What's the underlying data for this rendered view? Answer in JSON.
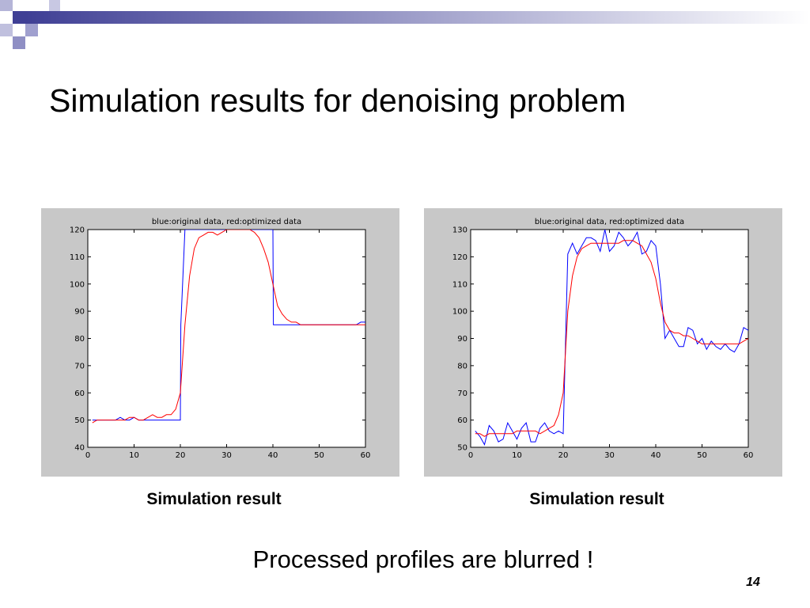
{
  "slide": {
    "title": "Simulation results for denoising problem",
    "note": "Processed profiles are blurred !",
    "number": "14"
  },
  "captions": [
    "Simulation result",
    "Simulation result"
  ],
  "colors": {
    "original": "#0000ff",
    "optimized": "#ff0000",
    "decor": "#3f3f95"
  },
  "chart_data": [
    {
      "type": "line",
      "title": "blue:original data, red:optimized data",
      "xlim": [
        0,
        60
      ],
      "ylim": [
        40,
        120
      ],
      "xticks": [
        0,
        10,
        20,
        30,
        40,
        50,
        60
      ],
      "yticks": [
        40,
        50,
        60,
        70,
        80,
        90,
        100,
        110,
        120
      ],
      "series": [
        {
          "color": "blue",
          "x": [
            1,
            2,
            3,
            4,
            5,
            6,
            7,
            8,
            9,
            10,
            11,
            12,
            13,
            14,
            15,
            16,
            17,
            18,
            19,
            20,
            20.1,
            21,
            22,
            23,
            24,
            25,
            26,
            27,
            28,
            29,
            30,
            31,
            32,
            33,
            34,
            35,
            36,
            37,
            38,
            39,
            40,
            40.1,
            41,
            42,
            43,
            44,
            45,
            46,
            47,
            48,
            49,
            50,
            51,
            52,
            53,
            54,
            55,
            56,
            57,
            58,
            59,
            60
          ],
          "y": [
            50,
            50,
            50,
            50,
            50,
            50,
            51,
            50,
            50,
            51,
            50,
            50,
            50,
            50,
            50,
            50,
            50,
            50,
            50,
            50,
            85,
            120,
            120,
            120,
            120,
            120,
            120,
            120,
            120,
            120,
            120,
            120,
            120,
            120,
            120,
            120,
            120,
            120,
            120,
            120,
            120,
            85,
            85,
            85,
            85,
            85,
            85,
            85,
            85,
            85,
            85,
            85,
            85,
            85,
            85,
            85,
            85,
            85,
            85,
            85,
            86,
            86
          ]
        },
        {
          "color": "red",
          "x": [
            1,
            2,
            3,
            4,
            5,
            6,
            7,
            8,
            9,
            10,
            11,
            12,
            13,
            14,
            15,
            16,
            17,
            18,
            19,
            20,
            21,
            22,
            23,
            24,
            25,
            26,
            27,
            28,
            29,
            30,
            31,
            32,
            33,
            34,
            35,
            36,
            37,
            38,
            39,
            40,
            41,
            42,
            43,
            44,
            45,
            46,
            47,
            48,
            49,
            50,
            51,
            52,
            53,
            54,
            55,
            56,
            57,
            58,
            59,
            60
          ],
          "y": [
            49,
            50,
            50,
            50,
            50,
            50,
            50,
            50,
            51,
            51,
            50,
            50,
            51,
            52,
            51,
            51,
            52,
            52,
            54,
            60,
            85,
            103,
            113,
            117,
            118,
            119,
            119,
            118,
            119,
            120,
            120,
            120,
            120,
            120,
            120,
            119,
            117,
            113,
            108,
            100,
            92,
            89,
            87,
            86,
            86,
            85,
            85,
            85,
            85,
            85,
            85,
            85,
            85,
            85,
            85,
            85,
            85,
            85,
            85,
            85
          ]
        }
      ]
    },
    {
      "type": "line",
      "title": "blue:original data, red:optimized data",
      "xlim": [
        0,
        60
      ],
      "ylim": [
        50,
        130
      ],
      "xticks": [
        0,
        10,
        20,
        30,
        40,
        50,
        60
      ],
      "yticks": [
        50,
        60,
        70,
        80,
        90,
        100,
        110,
        120,
        130
      ],
      "series": [
        {
          "color": "blue",
          "x": [
            1,
            2,
            3,
            4,
            5,
            6,
            7,
            8,
            9,
            10,
            11,
            12,
            13,
            14,
            15,
            16,
            17,
            18,
            19,
            20,
            21,
            22,
            23,
            24,
            25,
            26,
            27,
            28,
            29,
            30,
            31,
            32,
            33,
            34,
            35,
            36,
            37,
            38,
            39,
            40,
            41,
            42,
            43,
            44,
            45,
            46,
            47,
            48,
            49,
            50,
            51,
            52,
            53,
            54,
            55,
            56,
            57,
            58,
            59,
            60
          ],
          "y": [
            56,
            54,
            51,
            58,
            56,
            52,
            53,
            59,
            56,
            53,
            57,
            59,
            52,
            52,
            57,
            59,
            56,
            55,
            56,
            55,
            121,
            125,
            121,
            124,
            127,
            127,
            126,
            122,
            130,
            122,
            124,
            129,
            127,
            124,
            126,
            129,
            121,
            122,
            126,
            124,
            110,
            90,
            93,
            90,
            87,
            87,
            94,
            93,
            88,
            90,
            86,
            89,
            87,
            86,
            88,
            86,
            85,
            88,
            94,
            93
          ]
        },
        {
          "color": "red",
          "x": [
            1,
            2,
            3,
            4,
            5,
            6,
            7,
            8,
            9,
            10,
            11,
            12,
            13,
            14,
            15,
            16,
            17,
            18,
            19,
            20,
            21,
            22,
            23,
            24,
            25,
            26,
            27,
            28,
            29,
            30,
            31,
            32,
            33,
            34,
            35,
            36,
            37,
            38,
            39,
            40,
            41,
            42,
            43,
            44,
            45,
            46,
            47,
            48,
            49,
            50,
            51,
            52,
            53,
            54,
            55,
            56,
            57,
            58,
            59,
            60
          ],
          "y": [
            55,
            55,
            54,
            55,
            55,
            55,
            55,
            55,
            55,
            56,
            56,
            56,
            56,
            56,
            55,
            56,
            57,
            58,
            62,
            70,
            100,
            113,
            120,
            123,
            124,
            125,
            125,
            125,
            125,
            125,
            125,
            125,
            126,
            126,
            126,
            125,
            124,
            121,
            118,
            112,
            103,
            96,
            93,
            92,
            92,
            91,
            91,
            90,
            89,
            88,
            88,
            88,
            88,
            88,
            88,
            88,
            88,
            88,
            89,
            90
          ]
        }
      ]
    }
  ]
}
